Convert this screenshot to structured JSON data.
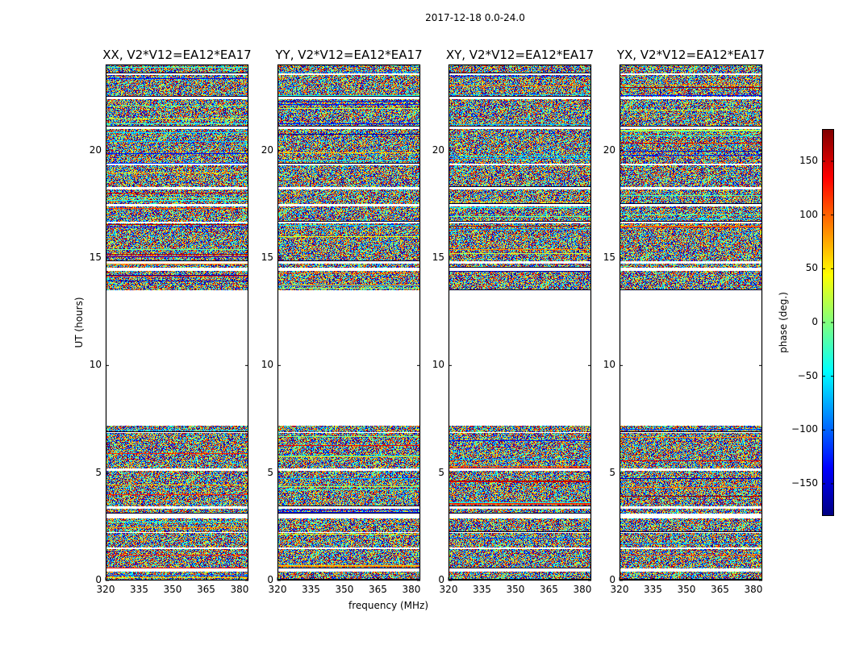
{
  "chart_data": {
    "type": "heatmap",
    "suptitle": "2017-12-18 0.0-24.0",
    "xlabel": "frequency (MHz)",
    "ylabel": "UT (hours)",
    "xlim": [
      320,
      384
    ],
    "ylim": [
      0,
      24
    ],
    "xticks": [
      "320",
      "335",
      "350",
      "365",
      "380"
    ],
    "yticks": [
      "0",
      "5",
      "10",
      "15",
      "20"
    ],
    "panels": [
      {
        "title": "XX, V2*V12=EA12*EA17"
      },
      {
        "title": "YY, V2*V12=EA12*EA17"
      },
      {
        "title": "XY, V2*V12=EA12*EA17"
      },
      {
        "title": "YX, V2*V12=EA12*EA17"
      }
    ],
    "data_time_ranges_hours": [
      [
        0.05,
        0.4
      ],
      [
        0.55,
        1.45
      ],
      [
        1.55,
        2.2
      ],
      [
        2.25,
        2.9
      ],
      [
        3.1,
        3.35
      ],
      [
        3.45,
        5.1
      ],
      [
        5.2,
        6.85
      ],
      [
        6.9,
        7.2
      ],
      [
        13.5,
        14.4
      ],
      [
        14.55,
        14.75
      ],
      [
        14.85,
        16.6
      ],
      [
        16.7,
        17.4
      ],
      [
        17.5,
        18.2
      ],
      [
        18.3,
        19.3
      ],
      [
        19.4,
        21.0
      ],
      [
        21.1,
        22.4
      ],
      [
        22.5,
        23.5
      ],
      [
        23.6,
        24.0
      ]
    ],
    "value_description": "phase noise, uniformly distributed",
    "colorbar": {
      "label": "phase (deg.)",
      "range": [
        -180,
        180
      ],
      "ticks": [
        "150",
        "100",
        "50",
        "0",
        "−50",
        "−100",
        "−150"
      ],
      "tick_values": [
        150,
        100,
        50,
        0,
        -50,
        -100,
        -150
      ],
      "colormap": "jet"
    }
  }
}
